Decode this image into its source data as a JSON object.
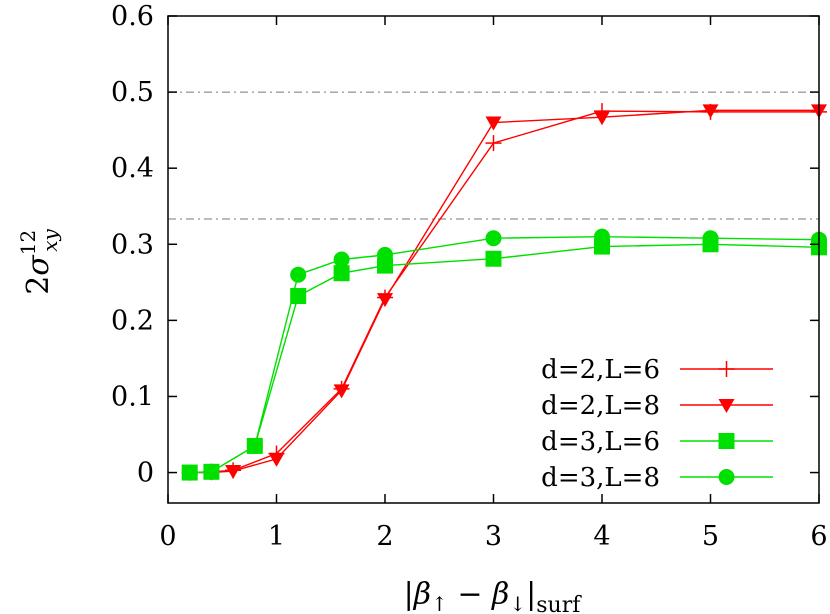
{
  "chart_data": {
    "type": "line",
    "xlabel": {
      "prefix": "|",
      "beta": "β",
      "up": "↑",
      "minus": " − ",
      "down": "↓",
      "bar": "|",
      "sub": "surf"
    },
    "ylabel": {
      "two": "2",
      "sigma": "σ",
      "sup": "12",
      "sub": "xy"
    },
    "xlim": [
      0,
      6
    ],
    "ylim": [
      -0.04,
      0.6
    ],
    "x_ticks": [
      "0",
      "1",
      "2",
      "3",
      "4",
      "5",
      "6"
    ],
    "y_ticks": [
      "0",
      "0.1",
      "0.2",
      "0.3",
      "0.4",
      "0.5",
      "0.6"
    ],
    "reference_lines": [
      0.5,
      0.3333
    ],
    "legend_position": "bottom-right",
    "grid": false,
    "series": [
      {
        "name": "d=2,L=6",
        "color": "#ff0000",
        "marker": "plus",
        "x": [
          0.2,
          0.4,
          0.6,
          1.0,
          1.6,
          2.0,
          3.0,
          4.0,
          5.0,
          6.0
        ],
        "y": [
          0.0,
          0.001,
          0.003,
          0.025,
          0.11,
          0.23,
          0.433,
          0.475,
          0.474,
          0.474
        ]
      },
      {
        "name": "d=2,L=8",
        "color": "#ff0000",
        "marker": "triangle-down",
        "x": [
          0.2,
          0.4,
          0.6,
          1.0,
          1.6,
          2.0,
          3.0,
          4.0,
          5.0,
          6.0
        ],
        "y": [
          0.0,
          0.0,
          0.002,
          0.018,
          0.108,
          0.228,
          0.46,
          0.467,
          0.476,
          0.476
        ]
      },
      {
        "name": "d=3,L=6",
        "color": "#00e000",
        "marker": "square",
        "x": [
          0.2,
          0.4,
          0.8,
          1.2,
          1.6,
          2.0,
          3.0,
          4.0,
          5.0,
          6.0
        ],
        "y": [
          0.0,
          0.001,
          0.035,
          0.232,
          0.262,
          0.272,
          0.281,
          0.297,
          0.3,
          0.296
        ]
      },
      {
        "name": "d=3,L=8",
        "color": "#00e000",
        "marker": "circle",
        "x": [
          0.2,
          0.4,
          0.8,
          1.2,
          1.6,
          2.0,
          3.0,
          4.0,
          5.0,
          6.0
        ],
        "y": [
          0.0,
          0.001,
          0.035,
          0.26,
          0.28,
          0.286,
          0.308,
          0.31,
          0.308,
          0.306
        ]
      }
    ]
  }
}
